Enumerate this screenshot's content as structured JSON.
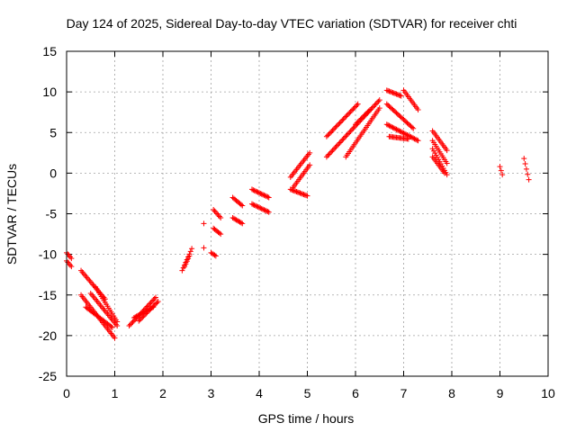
{
  "chart_data": {
    "type": "scatter",
    "title": "Day 124 of 2025, Sidereal Day-to-day VTEC variation (SDTVAR) for receiver chti",
    "xlabel": "GPS time / hours",
    "ylabel": "SDTVAR / TECUs",
    "xlim": [
      0,
      10
    ],
    "ylim": [
      -25,
      15
    ],
    "xticks": [
      "0",
      "1",
      "2",
      "3",
      "4",
      "5",
      "6",
      "7",
      "8",
      "9",
      "10"
    ],
    "yticks": [
      "15",
      "10",
      "5",
      "0",
      "-5",
      "-10",
      "-15",
      "-20",
      "-25"
    ],
    "grid": true,
    "marker": "+",
    "color": "#ff0000",
    "segments": [
      {
        "x0": 0.0,
        "x1": 0.1,
        "y0": -9.8,
        "y1": -10.5
      },
      {
        "x0": 0.0,
        "x1": 0.1,
        "y0": -10.8,
        "y1": -11.5
      },
      {
        "x0": 0.3,
        "x1": 0.8,
        "y0": -12.0,
        "y1": -15.5
      },
      {
        "x0": 0.6,
        "x1": 1.05,
        "y0": -14.0,
        "y1": -18.3
      },
      {
        "x0": 0.3,
        "x1": 1.0,
        "y0": -15.0,
        "y1": -20.3
      },
      {
        "x0": 0.4,
        "x1": 0.95,
        "y0": -16.5,
        "y1": -19.0
      },
      {
        "x0": 0.5,
        "x1": 1.05,
        "y0": -14.8,
        "y1": -18.8
      },
      {
        "x0": 1.3,
        "x1": 1.85,
        "y0": -18.8,
        "y1": -15.3
      },
      {
        "x0": 1.4,
        "x1": 1.8,
        "y0": -17.8,
        "y1": -16.5
      },
      {
        "x0": 1.5,
        "x1": 1.9,
        "y0": -18.2,
        "y1": -15.8
      },
      {
        "x0": 2.4,
        "x1": 2.6,
        "y0": -12.0,
        "y1": -9.3
      },
      {
        "x0": 2.45,
        "x1": 2.55,
        "y0": -11.5,
        "y1": -10.2
      },
      {
        "x0": 2.85,
        "x1": 2.85,
        "y0": -6.2,
        "y1": -9.2
      },
      {
        "x0": 3.0,
        "x1": 3.1,
        "y0": -9.8,
        "y1": -10.2
      },
      {
        "x0": 3.05,
        "x1": 3.2,
        "y0": -4.5,
        "y1": -5.5
      },
      {
        "x0": 3.05,
        "x1": 3.2,
        "y0": -6.8,
        "y1": -7.5
      },
      {
        "x0": 3.45,
        "x1": 3.65,
        "y0": -3.0,
        "y1": -4.0
      },
      {
        "x0": 3.45,
        "x1": 3.65,
        "y0": -5.5,
        "y1": -6.2
      },
      {
        "x0": 3.85,
        "x1": 4.2,
        "y0": -2.0,
        "y1": -3.0
      },
      {
        "x0": 3.85,
        "x1": 4.2,
        "y0": -3.8,
        "y1": -4.8
      },
      {
        "x0": 4.65,
        "x1": 5.05,
        "y0": -0.5,
        "y1": 2.5
      },
      {
        "x0": 4.7,
        "x1": 5.05,
        "y0": -1.8,
        "y1": 1.0
      },
      {
        "x0": 4.65,
        "x1": 5.0,
        "y0": -2.0,
        "y1": -2.8
      },
      {
        "x0": 5.4,
        "x1": 6.05,
        "y0": 4.5,
        "y1": 8.5
      },
      {
        "x0": 5.4,
        "x1": 6.5,
        "y0": 2.0,
        "y1": 9.0
      },
      {
        "x0": 5.8,
        "x1": 6.5,
        "y0": 2.0,
        "y1": 8.0
      },
      {
        "x0": 6.0,
        "x1": 6.3,
        "y0": 6.0,
        "y1": 7.8
      },
      {
        "x0": 6.65,
        "x1": 6.95,
        "y0": 10.2,
        "y1": 9.5
      },
      {
        "x0": 6.65,
        "x1": 7.2,
        "y0": 8.5,
        "y1": 5.5
      },
      {
        "x0": 7.0,
        "x1": 7.3,
        "y0": 10.2,
        "y1": 7.8
      },
      {
        "x0": 6.65,
        "x1": 7.3,
        "y0": 6.0,
        "y1": 4.0
      },
      {
        "x0": 6.7,
        "x1": 7.1,
        "y0": 4.5,
        "y1": 4.2
      },
      {
        "x0": 7.6,
        "x1": 7.9,
        "y0": 5.2,
        "y1": 2.8
      },
      {
        "x0": 7.6,
        "x1": 7.9,
        "y0": 4.0,
        "y1": 1.2
      },
      {
        "x0": 7.6,
        "x1": 7.85,
        "y0": 2.0,
        "y1": 0.0
      },
      {
        "x0": 7.6,
        "x1": 7.9,
        "y0": 3.0,
        "y1": -0.2
      },
      {
        "x0": 9.0,
        "x1": 9.05,
        "y0": 0.8,
        "y1": -0.2
      },
      {
        "x0": 9.5,
        "x1": 9.6,
        "y0": 1.8,
        "y1": -0.8
      }
    ]
  }
}
